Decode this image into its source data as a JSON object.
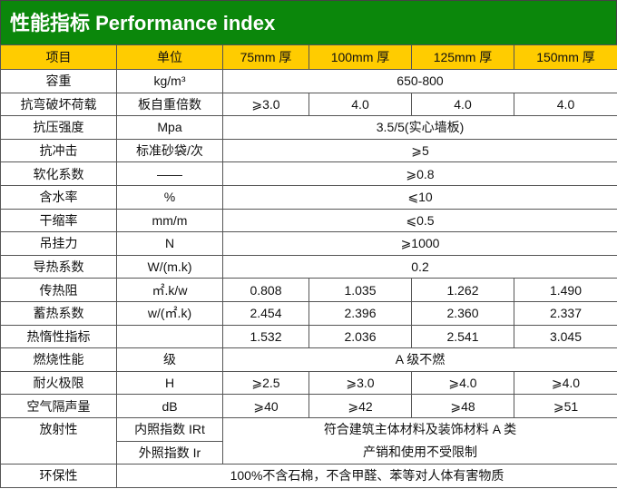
{
  "title": "性能指标  Performance index",
  "colors": {
    "title_bg": "#0b870b",
    "header_bg": "#ffcc00"
  },
  "header": [
    "项目",
    "单位",
    "75mm 厚",
    "100mm 厚",
    "125mm 厚",
    "150mm 厚"
  ],
  "rows": [
    {
      "cells": [
        {
          "t": "容重"
        },
        {
          "t": "kg/m³"
        },
        {
          "t": "650-800",
          "span": 4
        }
      ]
    },
    {
      "cells": [
        {
          "t": "抗弯破坏荷载"
        },
        {
          "t": "板自重倍数"
        },
        {
          "t": "⩾3.0"
        },
        {
          "t": "4.0"
        },
        {
          "t": "4.0"
        },
        {
          "t": "4.0"
        }
      ]
    },
    {
      "cells": [
        {
          "t": "抗压强度"
        },
        {
          "t": "Mpa"
        },
        {
          "t": "3.5/5(实心墙板)",
          "span": 4
        }
      ]
    },
    {
      "cells": [
        {
          "t": "抗冲击"
        },
        {
          "t": "标准砂袋/次"
        },
        {
          "t": "⩾5",
          "span": 4
        }
      ]
    },
    {
      "cells": [
        {
          "t": "软化系数"
        },
        {
          "t": "——"
        },
        {
          "t": "⩾0.8",
          "span": 4
        }
      ]
    },
    {
      "cells": [
        {
          "t": "含水率"
        },
        {
          "t": "%"
        },
        {
          "t": "⩽10",
          "span": 4
        }
      ]
    },
    {
      "cells": [
        {
          "t": "干缩率"
        },
        {
          "t": "mm/m"
        },
        {
          "t": "⩽0.5",
          "span": 4
        }
      ]
    },
    {
      "cells": [
        {
          "t": "吊挂力"
        },
        {
          "t": "N"
        },
        {
          "t": "⩾1000",
          "span": 4
        }
      ]
    },
    {
      "cells": [
        {
          "t": "导热系数"
        },
        {
          "t": "W/(m.k)"
        },
        {
          "t": "0.2",
          "span": 4
        }
      ]
    },
    {
      "cells": [
        {
          "t": "传热阻"
        },
        {
          "t": "㎡.k/w"
        },
        {
          "t": "0.808"
        },
        {
          "t": "1.035"
        },
        {
          "t": "1.262"
        },
        {
          "t": "1.490"
        }
      ]
    },
    {
      "cells": [
        {
          "t": "蓄热系数"
        },
        {
          "t": "w/(㎡.k)"
        },
        {
          "t": "2.454"
        },
        {
          "t": "2.396"
        },
        {
          "t": "2.360"
        },
        {
          "t": "2.337"
        }
      ]
    },
    {
      "cells": [
        {
          "t": "热惰性指标"
        },
        {
          "t": ""
        },
        {
          "t": "1.532"
        },
        {
          "t": "2.036"
        },
        {
          "t": "2.541"
        },
        {
          "t": "3.045"
        }
      ]
    },
    {
      "cells": [
        {
          "t": "燃烧性能"
        },
        {
          "t": "级"
        },
        {
          "t": "A 级不燃",
          "span": 4
        }
      ]
    },
    {
      "cells": [
        {
          "t": "耐火极限"
        },
        {
          "t": "H"
        },
        {
          "t": "⩾2.5"
        },
        {
          "t": "⩾3.0"
        },
        {
          "t": "⩾4.0"
        },
        {
          "t": "⩾4.0"
        }
      ]
    },
    {
      "cells": [
        {
          "t": "空气隔声量"
        },
        {
          "t": "dB"
        },
        {
          "t": "⩾40"
        },
        {
          "t": "⩾42"
        },
        {
          "t": "⩾48"
        },
        {
          "t": "⩾51"
        }
      ]
    }
  ],
  "radiation": {
    "label": "放射性",
    "internal": "内照指数 IRt",
    "external": "外照指数 Ir",
    "value_line1": "符合建筑主体材料及装饰材料 A 类",
    "value_line2": "产销和使用不受限制"
  },
  "environment": {
    "label": "环保性",
    "value": "100%不含石棉，不含甲醛、苯等对人体有害物质"
  }
}
